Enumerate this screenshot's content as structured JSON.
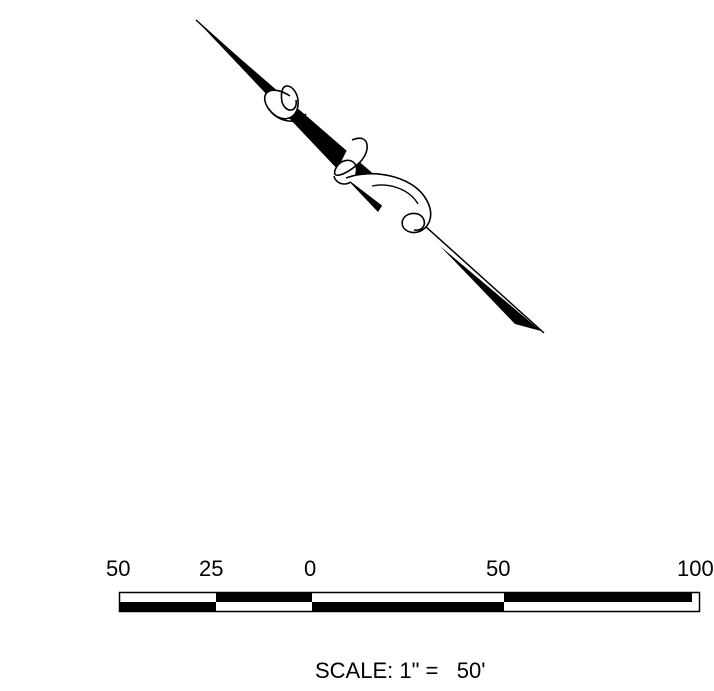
{
  "scale_bar": {
    "tick_labels": [
      "50",
      "25",
      "0",
      "50",
      "100"
    ],
    "caption_prefix": "SCALE: 1\" =",
    "caption_value": "50'"
  },
  "north_arrow": {
    "icon": "north-arrow-icon"
  },
  "colors": {
    "ink": "#000000",
    "paper": "#ffffff"
  }
}
